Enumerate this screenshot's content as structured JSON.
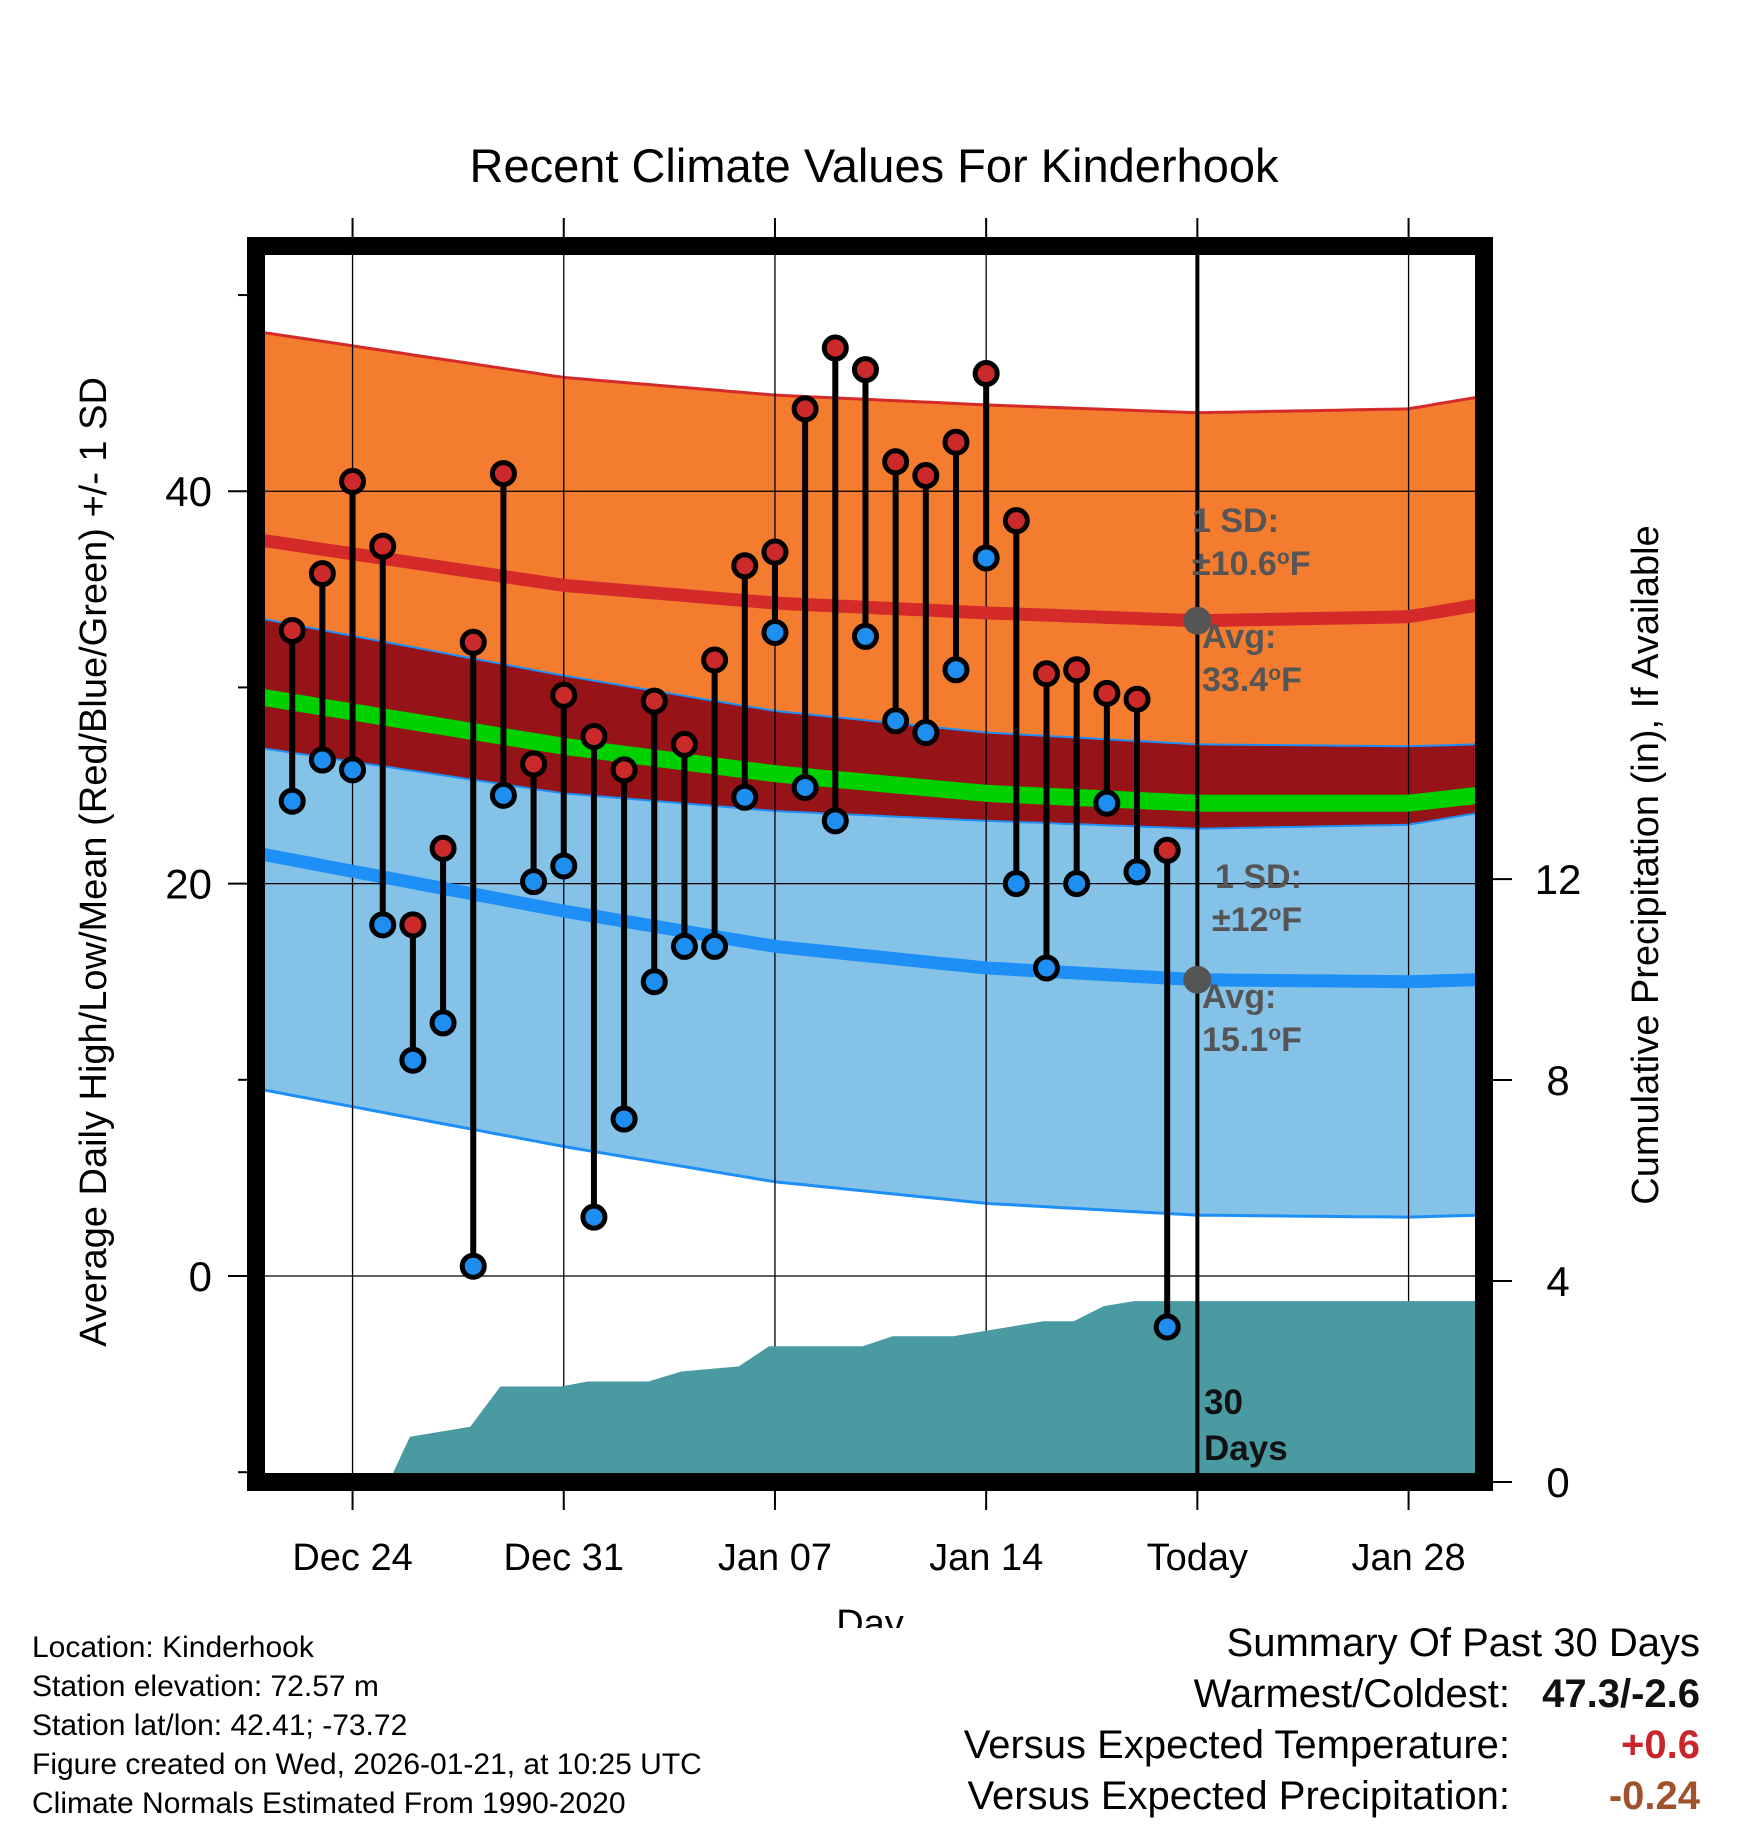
{
  "title": "Recent Climate Values For Kinderhook",
  "chart_data": {
    "type": "line",
    "title": "Recent Climate Values For Kinderhook",
    "xlabel": "Day",
    "ylabel": "Average Daily High/Low/Mean (Red/Blue/Green) +/- 1 SD",
    "y2label": "Cumulative Precipitation (in), If Available",
    "ylim": [
      -10.5,
      52.5
    ],
    "y2lim": [
      0,
      24.6
    ],
    "xlim": [
      -3.2,
      37.5
    ],
    "x_ticks": [
      0,
      7,
      14,
      21,
      28,
      35
    ],
    "x_tick_labels": [
      "Dec 24",
      "Dec 31",
      "Jan 07",
      "Jan 14",
      "Today",
      "Jan 28"
    ],
    "y_ticks": [
      0,
      20,
      40
    ],
    "y_tick_labels": [
      "0",
      "20",
      "40"
    ],
    "y2_ticks": [
      0,
      4,
      8,
      12
    ],
    "y2_tick_labels": [
      "0",
      "4",
      "8",
      "12"
    ],
    "today_x": 28,
    "normal_high": {
      "x": [
        -3,
        7,
        14,
        21,
        28,
        35,
        37.3
      ],
      "avg": [
        37.5,
        35.2,
        34.3,
        33.8,
        33.4,
        33.6,
        34.2
      ],
      "sd": 10.6
    },
    "normal_low": {
      "x": [
        -3,
        7,
        14,
        21,
        28,
        35,
        37.3
      ],
      "avg": [
        21.5,
        18.6,
        16.8,
        15.7,
        15.1,
        15.0,
        15.1
      ],
      "sd": 12
    },
    "normal_mean": {
      "x": [
        -3,
        7,
        14,
        21,
        28,
        35,
        37.3
      ],
      "avg": [
        29.5,
        27.0,
        25.6,
        24.6,
        24.1,
        24.1,
        24.5
      ]
    },
    "daily": {
      "x": [
        -2,
        -1,
        0,
        1,
        2,
        3,
        4,
        5,
        6,
        7,
        8,
        9,
        10,
        11,
        12,
        13,
        14,
        15,
        16,
        17,
        18,
        19,
        20,
        21,
        22,
        23,
        24,
        25,
        26,
        27
      ],
      "high": [
        32.9,
        35.8,
        40.5,
        37.2,
        17.9,
        21.8,
        32.3,
        40.9,
        26.1,
        29.6,
        27.5,
        25.8,
        29.3,
        27.1,
        31.4,
        36.2,
        36.9,
        44.2,
        47.3,
        46.2,
        41.5,
        40.8,
        42.5,
        46.0,
        38.5,
        30.7,
        30.9,
        29.7,
        29.4,
        21.7
      ],
      "low": [
        24.2,
        26.3,
        25.8,
        17.9,
        11.0,
        12.9,
        0.5,
        24.5,
        20.1,
        20.9,
        3.0,
        8.0,
        15.0,
        16.8,
        16.8,
        24.4,
        32.8,
        24.9,
        23.2,
        32.6,
        28.3,
        27.7,
        30.9,
        36.6,
        20.0,
        15.7,
        20.0,
        24.1,
        20.6,
        -2.6
      ]
    },
    "precip": {
      "x": [
        -3.2,
        1.2,
        1.9,
        3.9,
        4.9,
        6.9,
        7.8,
        9.8,
        10.9,
        12.8,
        13.8,
        16.9,
        17.9,
        19.9,
        20.9,
        21.9,
        22.9,
        23.9,
        24.9,
        25.9,
        26.9,
        28,
        37.3
      ],
      "cumulative": [
        0,
        0,
        0.9,
        1.1,
        1.9,
        1.9,
        2.0,
        2.0,
        2.2,
        2.3,
        2.7,
        2.7,
        2.9,
        2.9,
        3.0,
        3.1,
        3.2,
        3.2,
        3.5,
        3.6,
        3.6,
        3.6,
        3.6
      ]
    },
    "annotations": {
      "high_sd_label": "1 SD:",
      "high_sd_value": "±10.6",
      "high_avg_label": "Avg:",
      "high_avg_value": "33.4",
      "low_sd_label": "1 SD:",
      "low_sd_value": "±12",
      "low_avg_label": "Avg:",
      "low_avg_value": "15.1",
      "unit_sup": "o",
      "unit_letter": "F",
      "days_line1": "30",
      "days_line2": "Days"
    },
    "colors": {
      "high_band": "#f47c2f",
      "high_line": "#d42a2a",
      "low_band": "#85c2e8",
      "low_line": "#1e8ff7",
      "mean_line": "#00d000",
      "overlap": "#961318",
      "precip": "#4a9aa2",
      "high_dot": "#cc2a2a",
      "low_dot": "#1e8ff0",
      "annotation": "#555555"
    }
  },
  "footer": {
    "location": "Location: Kinderhook",
    "elevation": "Station elevation: 72.57 m",
    "latlon": "Station lat/lon: 42.41; -73.72",
    "created": "Figure created on Wed, 2026-01-21, at 10:25 UTC",
    "normals": "Climate Normals Estimated From 1990-2020"
  },
  "summary": {
    "heading": "Summary Of Past 30 Days",
    "warmest_label": "Warmest/Coldest:",
    "warmest_value": "47.3/-2.6",
    "temp_label": "Versus Expected Temperature:",
    "temp_value": "+0.6",
    "precip_label": "Versus Expected Precipitation:",
    "precip_value": "-0.24"
  }
}
